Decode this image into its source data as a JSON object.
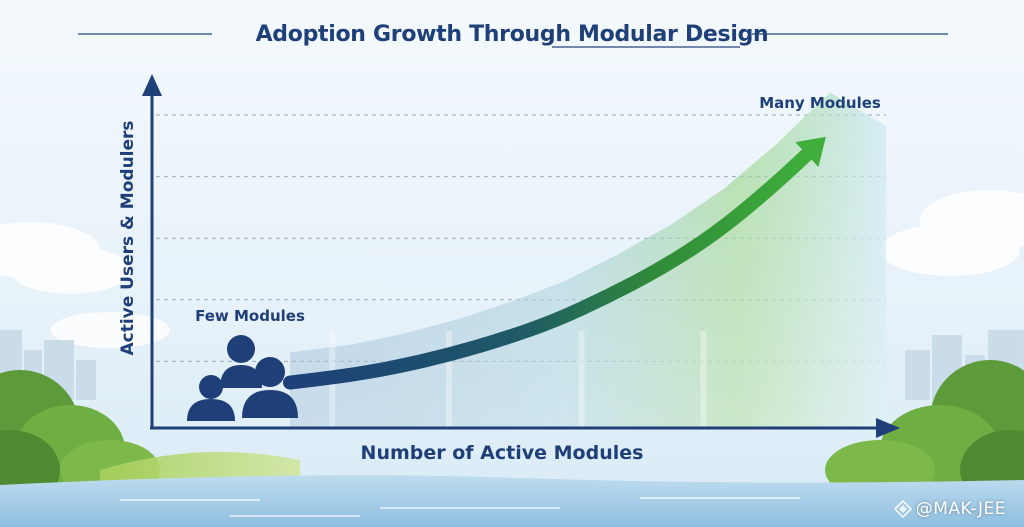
{
  "chart_data": {
    "type": "line",
    "title": "Adoption Growth Through Modular Design",
    "xlabel": "Number of Active Modules",
    "ylabel": "Active Users & Modulers",
    "annotations": {
      "start": "Few Modules",
      "end": "Many Modules"
    },
    "x": [
      0,
      0.1,
      0.2,
      0.3,
      0.4,
      0.5,
      0.6,
      0.7,
      0.8,
      0.9,
      1.0
    ],
    "y": [
      0.18,
      0.2,
      0.23,
      0.27,
      0.32,
      0.38,
      0.46,
      0.55,
      0.66,
      0.8,
      0.96
    ],
    "xlim": [
      0,
      1
    ],
    "ylim": [
      0,
      1
    ],
    "grid": true,
    "legend": "none"
  },
  "watermark": "@MAK-JEE",
  "colors": {
    "title": "#1f3f78",
    "axis": "#1f3f78",
    "curve_start": "#1d3f7a",
    "curve_end": "#3da83a",
    "people": "#1f3f78"
  },
  "icons": {
    "people": "people-icon",
    "watermark_logo": "diamond-logo-icon"
  }
}
